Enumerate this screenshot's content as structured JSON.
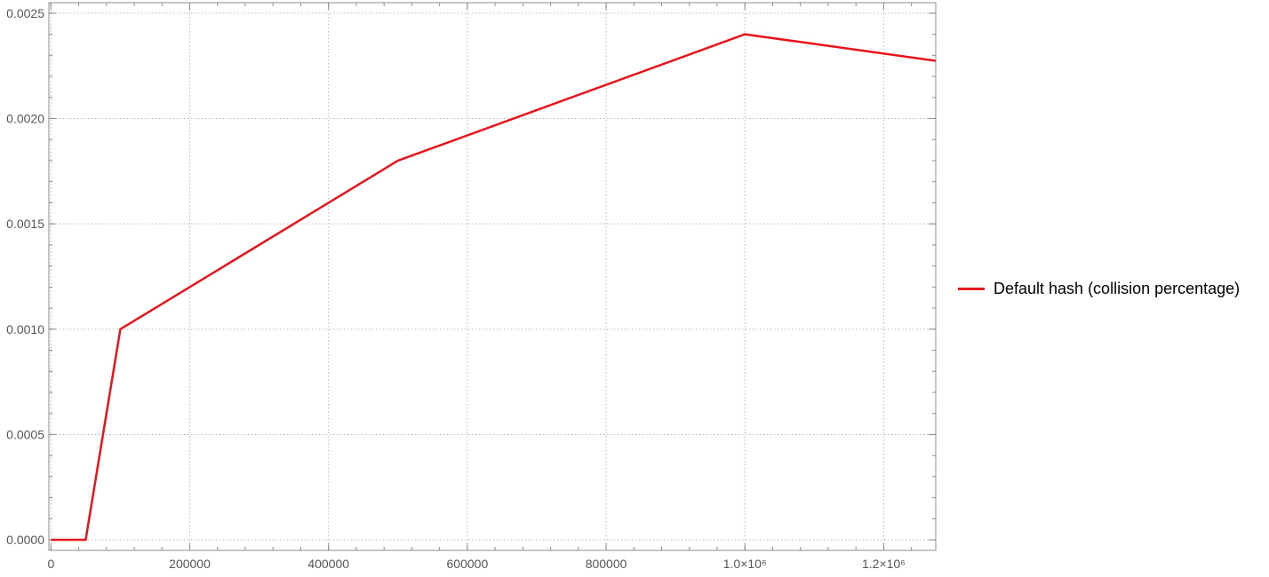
{
  "chart_data": {
    "type": "line",
    "title": "",
    "xlabel": "",
    "ylabel": "",
    "xlim": [
      -3000,
      1275000
    ],
    "ylim": [
      -5e-05,
      0.00255
    ],
    "grid": true,
    "legend_position": "right",
    "x_ticks": [
      {
        "value": 0,
        "label": "0"
      },
      {
        "value": 200000,
        "label": "200000"
      },
      {
        "value": 400000,
        "label": "400000"
      },
      {
        "value": 600000,
        "label": "600000"
      },
      {
        "value": 800000,
        "label": "800000"
      },
      {
        "value": 1000000,
        "label": "1.0×10⁶"
      },
      {
        "value": 1200000,
        "label": "1.2×10⁶"
      }
    ],
    "y_ticks": [
      {
        "value": 0.0,
        "label": "0.0000"
      },
      {
        "value": 0.0005,
        "label": "0.0005"
      },
      {
        "value": 0.001,
        "label": "0.0010"
      },
      {
        "value": 0.0015,
        "label": "0.0015"
      },
      {
        "value": 0.002,
        "label": "0.0020"
      },
      {
        "value": 0.0025,
        "label": "0.0025"
      }
    ],
    "series": [
      {
        "name": "Default hash (collision percentage)",
        "color": "#e8141b",
        "points": [
          [
            0,
            0.0
          ],
          [
            50000,
            0.0
          ],
          [
            100000,
            0.001
          ],
          [
            500000,
            0.0018
          ],
          [
            1000000,
            0.0024
          ],
          [
            1275000,
            0.002274
          ]
        ]
      }
    ]
  }
}
